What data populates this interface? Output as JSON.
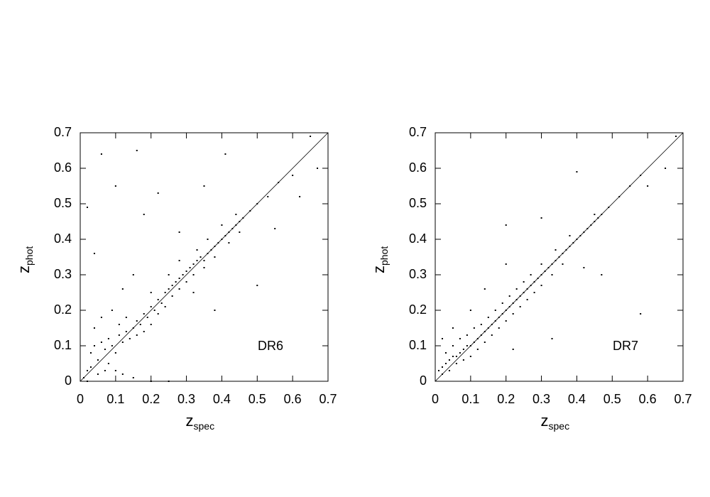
{
  "chart_data": [
    {
      "type": "scatter",
      "annotation": "DR6",
      "xlabel": {
        "main": "z",
        "sub": "spec"
      },
      "ylabel": {
        "main": "z",
        "sub": "phot"
      },
      "xlim": [
        0,
        0.7
      ],
      "ylim": [
        0,
        0.7
      ],
      "xticks": [
        0,
        0.1,
        0.2,
        0.3,
        0.4,
        0.5,
        0.6,
        0.7
      ],
      "yticks": [
        0,
        0.1,
        0.2,
        0.3,
        0.4,
        0.5,
        0.6,
        0.7
      ],
      "color": "#000000",
      "x": [
        0.02,
        0.03,
        0.04,
        0.05,
        0.06,
        0.07,
        0.08,
        0.09,
        0.1,
        0.11,
        0.12,
        0.13,
        0.14,
        0.15,
        0.16,
        0.17,
        0.18,
        0.19,
        0.2,
        0.21,
        0.22,
        0.23,
        0.24,
        0.25,
        0.26,
        0.27,
        0.28,
        0.29,
        0.3,
        0.31,
        0.32,
        0.33,
        0.34,
        0.35,
        0.36,
        0.37,
        0.38,
        0.39,
        0.4,
        0.41,
        0.42,
        0.43,
        0.44,
        0.45,
        0.46,
        0.48,
        0.5,
        0.53,
        0.56,
        0.6,
        0.01,
        0.02,
        0.03,
        0.05,
        0.07,
        0.08,
        0.1,
        0.12,
        0.15,
        0.04,
        0.06,
        0.09,
        0.11,
        0.13,
        0.16,
        0.18,
        0.2,
        0.22,
        0.24,
        0.26,
        0.28,
        0.3,
        0.32,
        0.35,
        0.38,
        0.42,
        0.45,
        0.2,
        0.25,
        0.28,
        0.33,
        0.36,
        0.4,
        0.44,
        0.06,
        0.16,
        0.41,
        0.02,
        0.04,
        0.1,
        0.18,
        0.22,
        0.35,
        0.38,
        0.32,
        0.5,
        0.55,
        0.62,
        0.67,
        0.65,
        0.2,
        0.25,
        0.28,
        0.15,
        0.12
      ],
      "values": [
        0.03,
        0.08,
        0.1,
        0.06,
        0.11,
        0.09,
        0.12,
        0.1,
        0.08,
        0.13,
        0.11,
        0.14,
        0.12,
        0.15,
        0.17,
        0.16,
        0.19,
        0.18,
        0.21,
        0.2,
        0.23,
        0.22,
        0.25,
        0.26,
        0.27,
        0.28,
        0.29,
        0.3,
        0.31,
        0.32,
        0.33,
        0.34,
        0.35,
        0.34,
        0.36,
        0.37,
        0.38,
        0.39,
        0.4,
        0.41,
        0.42,
        0.43,
        0.44,
        0.45,
        0.46,
        0.48,
        0.5,
        0.52,
        0.56,
        0.58,
        0.01,
        0.0,
        0.04,
        0.02,
        0.03,
        0.05,
        0.03,
        0.02,
        0.01,
        0.15,
        0.18,
        0.2,
        0.16,
        0.18,
        0.13,
        0.14,
        0.16,
        0.19,
        0.21,
        0.24,
        0.26,
        0.28,
        0.3,
        0.32,
        0.35,
        0.39,
        0.42,
        0.25,
        0.3,
        0.34,
        0.37,
        0.4,
        0.44,
        0.47,
        0.64,
        0.65,
        0.64,
        0.49,
        0.36,
        0.55,
        0.47,
        0.53,
        0.55,
        0.2,
        0.25,
        0.27,
        0.43,
        0.52,
        0.6,
        0.69,
        0.0,
        0.0,
        0.42,
        0.3,
        0.26
      ]
    },
    {
      "type": "scatter",
      "annotation": "DR7",
      "xlabel": {
        "main": "z",
        "sub": "spec"
      },
      "ylabel": {
        "main": "z",
        "sub": "phot"
      },
      "xlim": [
        0,
        0.7
      ],
      "ylim": [
        0,
        0.7
      ],
      "xticks": [
        0,
        0.1,
        0.2,
        0.3,
        0.4,
        0.5,
        0.6,
        0.7
      ],
      "yticks": [
        0,
        0.1,
        0.2,
        0.3,
        0.4,
        0.5,
        0.6,
        0.7
      ],
      "color": "#000000",
      "x": [
        0.01,
        0.02,
        0.03,
        0.04,
        0.05,
        0.06,
        0.07,
        0.08,
        0.09,
        0.1,
        0.11,
        0.12,
        0.13,
        0.14,
        0.15,
        0.16,
        0.17,
        0.18,
        0.19,
        0.2,
        0.21,
        0.22,
        0.23,
        0.24,
        0.25,
        0.26,
        0.27,
        0.28,
        0.29,
        0.3,
        0.31,
        0.32,
        0.33,
        0.34,
        0.35,
        0.36,
        0.37,
        0.38,
        0.39,
        0.4,
        0.41,
        0.42,
        0.43,
        0.44,
        0.45,
        0.46,
        0.47,
        0.49,
        0.52,
        0.55,
        0.58,
        0.02,
        0.04,
        0.06,
        0.08,
        0.1,
        0.12,
        0.14,
        0.16,
        0.18,
        0.2,
        0.22,
        0.24,
        0.26,
        0.28,
        0.3,
        0.33,
        0.36,
        0.03,
        0.05,
        0.07,
        0.09,
        0.11,
        0.13,
        0.15,
        0.17,
        0.19,
        0.21,
        0.23,
        0.25,
        0.27,
        0.3,
        0.34,
        0.38,
        0.1,
        0.2,
        0.4,
        0.02,
        0.05,
        0.14,
        0.2,
        0.3,
        0.42,
        0.47,
        0.58,
        0.6,
        0.65,
        0.68,
        0.45,
        0.33,
        0.22
      ],
      "values": [
        0.03,
        0.04,
        0.05,
        0.06,
        0.07,
        0.07,
        0.08,
        0.09,
        0.1,
        0.1,
        0.11,
        0.12,
        0.13,
        0.14,
        0.15,
        0.16,
        0.17,
        0.18,
        0.19,
        0.2,
        0.21,
        0.22,
        0.23,
        0.24,
        0.25,
        0.26,
        0.27,
        0.28,
        0.29,
        0.3,
        0.31,
        0.32,
        0.33,
        0.34,
        0.35,
        0.36,
        0.37,
        0.38,
        0.39,
        0.4,
        0.41,
        0.42,
        0.43,
        0.44,
        0.45,
        0.46,
        0.47,
        0.49,
        0.52,
        0.55,
        0.58,
        0.02,
        0.03,
        0.05,
        0.06,
        0.07,
        0.09,
        0.11,
        0.13,
        0.15,
        0.17,
        0.19,
        0.21,
        0.23,
        0.25,
        0.27,
        0.3,
        0.33,
        0.08,
        0.1,
        0.12,
        0.13,
        0.15,
        0.16,
        0.18,
        0.2,
        0.22,
        0.24,
        0.26,
        0.28,
        0.3,
        0.33,
        0.37,
        0.41,
        0.2,
        0.33,
        0.59,
        0.12,
        0.15,
        0.26,
        0.44,
        0.46,
        0.32,
        0.3,
        0.19,
        0.55,
        0.6,
        0.69,
        0.47,
        0.12,
        0.09
      ]
    }
  ]
}
